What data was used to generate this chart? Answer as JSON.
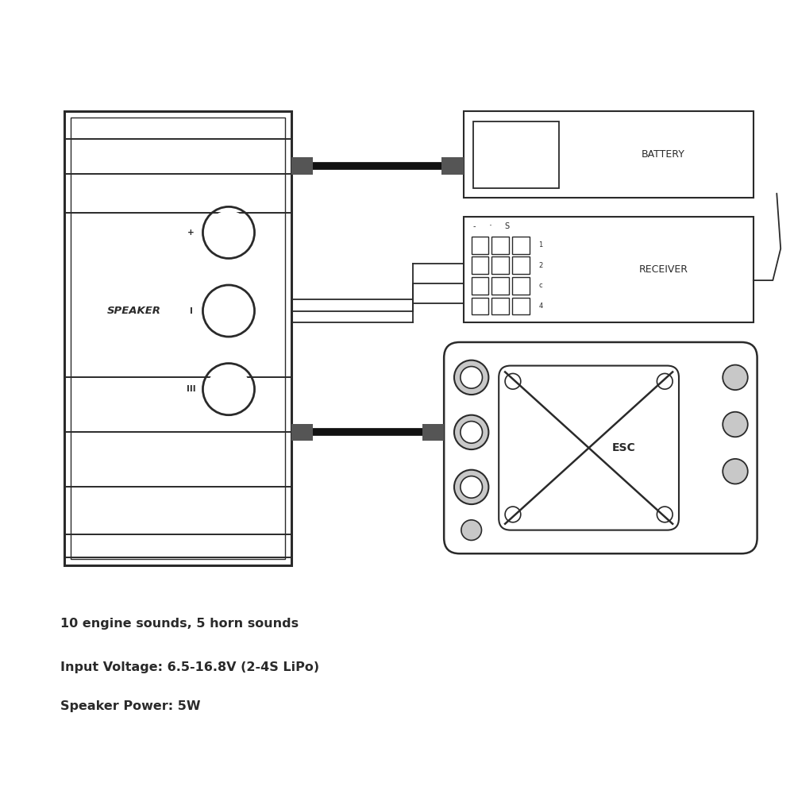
{
  "bg_color": "#ffffff",
  "line_color": "#2a2a2a",
  "text_color": "#2a2a2a",
  "title_lines": [
    "10 engine sounds, 5 horn sounds",
    "Input Voltage: 6.5-16.8V (2-4S LiPo)",
    "Speaker Power: 5W"
  ],
  "speaker_label": "SPEAKER",
  "battery_label": "BATTERY",
  "receiver_label": "RECEIVER",
  "esc_label": "ESC"
}
